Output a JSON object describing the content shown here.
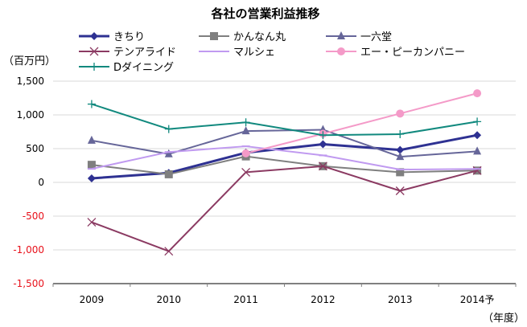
{
  "chart_data": {
    "type": "line",
    "title": "各社の営業利益推移",
    "ylabel": "（百万円）",
    "xlabel": "（年度）",
    "categories": [
      "2009",
      "2010",
      "2011",
      "2012",
      "2013",
      "2014予"
    ],
    "ylim": [
      -1500,
      1500
    ],
    "yticks": [
      1500,
      1000,
      500,
      0,
      -500,
      -1000,
      -1500
    ],
    "ytick_labels": [
      "1,500",
      "1,000",
      "500",
      "0",
      "-500",
      "-1,000",
      "-1,500"
    ],
    "negative_tick_color": "#e8111b",
    "grid": true,
    "legend_position": "top",
    "series": [
      {
        "name": "きちり",
        "color": "#2e3192",
        "marker": "diamond",
        "width": 3,
        "values": [
          60,
          140,
          440,
          565,
          480,
          700
        ]
      },
      {
        "name": "かんなん丸",
        "color": "#7f7f7f",
        "marker": "square",
        "width": 2,
        "values": [
          260,
          120,
          385,
          240,
          150,
          175
        ]
      },
      {
        "name": "一六堂",
        "color": "#666699",
        "marker": "triangle",
        "width": 2,
        "values": [
          620,
          420,
          760,
          780,
          380,
          460
        ]
      },
      {
        "name": "テンアライド",
        "color": "#8b3a62",
        "marker": "x",
        "width": 2,
        "values": [
          -590,
          -1020,
          150,
          240,
          -125,
          175
        ]
      },
      {
        "name": "マルシェ",
        "color": "#c09af0",
        "marker": "dash",
        "width": 2,
        "values": [
          200,
          450,
          535,
          400,
          190,
          200
        ]
      },
      {
        "name": "エー・ピーカンパニー",
        "color": "#f49ac8",
        "marker": "circle",
        "width": 2,
        "values": [
          null,
          null,
          430,
          720,
          1020,
          1320
        ]
      },
      {
        "name": "Dダイニング",
        "color": "#11897e",
        "marker": "plus",
        "width": 2,
        "values": [
          1160,
          790,
          890,
          700,
          715,
          900
        ]
      }
    ]
  }
}
